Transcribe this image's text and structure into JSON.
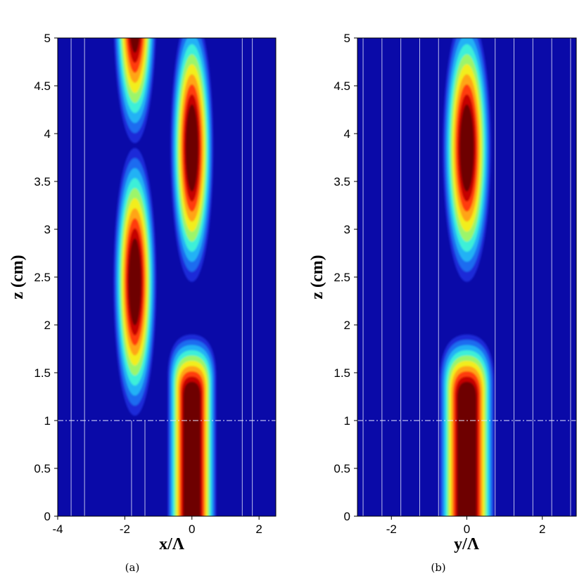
{
  "chart_data": [
    {
      "type": "heatmap",
      "panel_label": "(a)",
      "xlabel": "x/Λ",
      "ylabel": "z (cm)",
      "xlim": [
        -4,
        2.5
      ],
      "ylim": [
        0,
        5
      ],
      "xticks": [
        -4,
        -2,
        0,
        2
      ],
      "yticks": [
        0,
        0.5,
        1,
        1.5,
        2,
        2.5,
        3,
        3.5,
        4,
        4.5,
        5
      ],
      "colormap": "jet",
      "grid": false,
      "guide_line_z": 1,
      "waveguide_lines_above_z1": [
        -3.6,
        -3.2,
        1.5,
        1.8
      ],
      "waveguide_lines_below_z1": [
        -3.6,
        -3.2,
        -1.8,
        -1.4,
        1.5,
        1.8
      ],
      "intensity_maxima": [
        {
          "x": 0,
          "z_start": 0,
          "z_end": 1.4,
          "peak": 1.0,
          "beam_width": 0.25
        },
        {
          "x": -1.7,
          "z": 2.45,
          "peak": 1.0,
          "beam_width": 0.22
        },
        {
          "x": 0,
          "z": 3.85,
          "peak": 1.0,
          "beam_width": 0.22
        },
        {
          "x": -1.7,
          "z": 5.3,
          "peak": 1.0,
          "beam_width": 0.22
        }
      ]
    },
    {
      "type": "heatmap",
      "panel_label": "(b)",
      "xlabel": "y/Λ",
      "ylabel": "z (cm)",
      "xlim": [
        -2.9,
        2.9
      ],
      "ylim": [
        0,
        5
      ],
      "xticks": [
        -2,
        0,
        2
      ],
      "yticks": [
        0,
        0.5,
        1,
        1.5,
        2,
        2.5,
        3,
        3.5,
        4,
        4.5,
        5
      ],
      "colormap": "jet",
      "grid": false,
      "guide_line_z": 1,
      "waveguide_lines": [
        -2.75,
        -2.25,
        -1.75,
        -1.25,
        -0.75,
        0.75,
        1.25,
        1.75,
        2.25,
        2.75
      ],
      "intensity_maxima": [
        {
          "x": 0,
          "z_start": 0,
          "z_end": 1.4,
          "peak": 1.0,
          "beam_width": 0.25
        },
        {
          "x": 0,
          "z": 3.85,
          "peak": 1.0,
          "beam_width": 0.22
        }
      ]
    }
  ]
}
